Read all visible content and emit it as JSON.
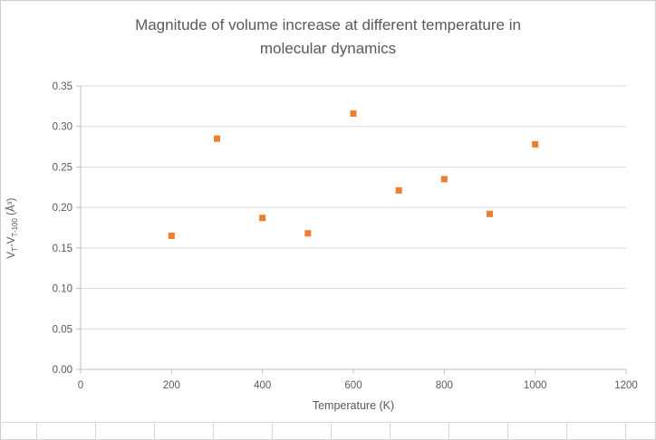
{
  "chart_data": {
    "type": "scatter",
    "title": "Magnitude of volume increase at different temperature in molecular dynamics",
    "title_lines": [
      "Magnitude of volume increase at different temperature in",
      "molecular dynamics"
    ],
    "xlabel": "Temperature (K)",
    "ylabel_text": "VT-VT-100 (Å³)",
    "ylabel_parts": {
      "v1": "V",
      "sub1": "T",
      "mid": "-V",
      "sub2": "T-100",
      "units": " (Å³)"
    },
    "x": [
      200,
      300,
      400,
      500,
      600,
      700,
      800,
      900,
      1000
    ],
    "y": [
      0.165,
      0.285,
      0.187,
      0.168,
      0.316,
      0.221,
      0.235,
      0.192,
      0.278
    ],
    "xlim": [
      0,
      1200
    ],
    "ylim": [
      0,
      0.35
    ],
    "x_ticks": [
      0,
      200,
      400,
      600,
      800,
      1000,
      1200
    ],
    "y_ticks": [
      0,
      0.05,
      0.1,
      0.15,
      0.2,
      0.25,
      0.3,
      0.35
    ],
    "grid": true,
    "legend": "none",
    "marker_color": "#ED7D31",
    "grid_color": "#D9D9D9",
    "axis_color": "#BFBFBF",
    "text_color": "#595959"
  }
}
